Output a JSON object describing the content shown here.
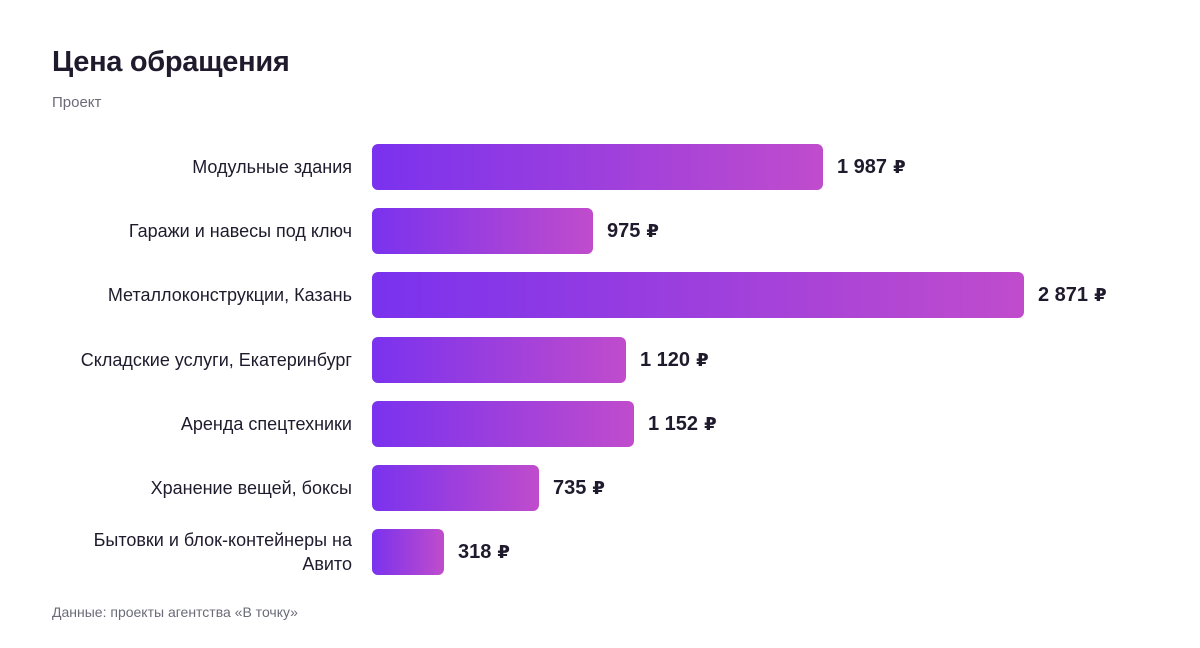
{
  "header": {
    "title": "Цена обращения",
    "subtitle": "Проект"
  },
  "footer": {
    "source": "Данные: проекты агентства «В точку»"
  },
  "colors": {
    "bar_start": "#7a32ee",
    "bar_end": "#c04ccc",
    "text": "#1f1b2d",
    "muted": "#6b6b78"
  },
  "chart_data": {
    "type": "bar",
    "orientation": "horizontal",
    "title": "Цена обращения",
    "subtitle": "Проект",
    "unit": "₽",
    "categories": [
      "Модульные здания",
      "Гаражи и навесы под ключ",
      "Металлоконструкции, Казань",
      "Складские услуги, Екатеринбург",
      "Аренда спецтехники",
      "Хранение вещей, боксы",
      "Бытовки и блок-контейнеры на Авито"
    ],
    "values": [
      1987,
      975,
      2871,
      1120,
      1152,
      735,
      318
    ],
    "value_labels": [
      "1 987",
      "975",
      "2 871",
      "1 120",
      "1 152",
      "735",
      "318"
    ],
    "xlim": [
      0,
      2871
    ],
    "grid": false,
    "legend": "none"
  }
}
